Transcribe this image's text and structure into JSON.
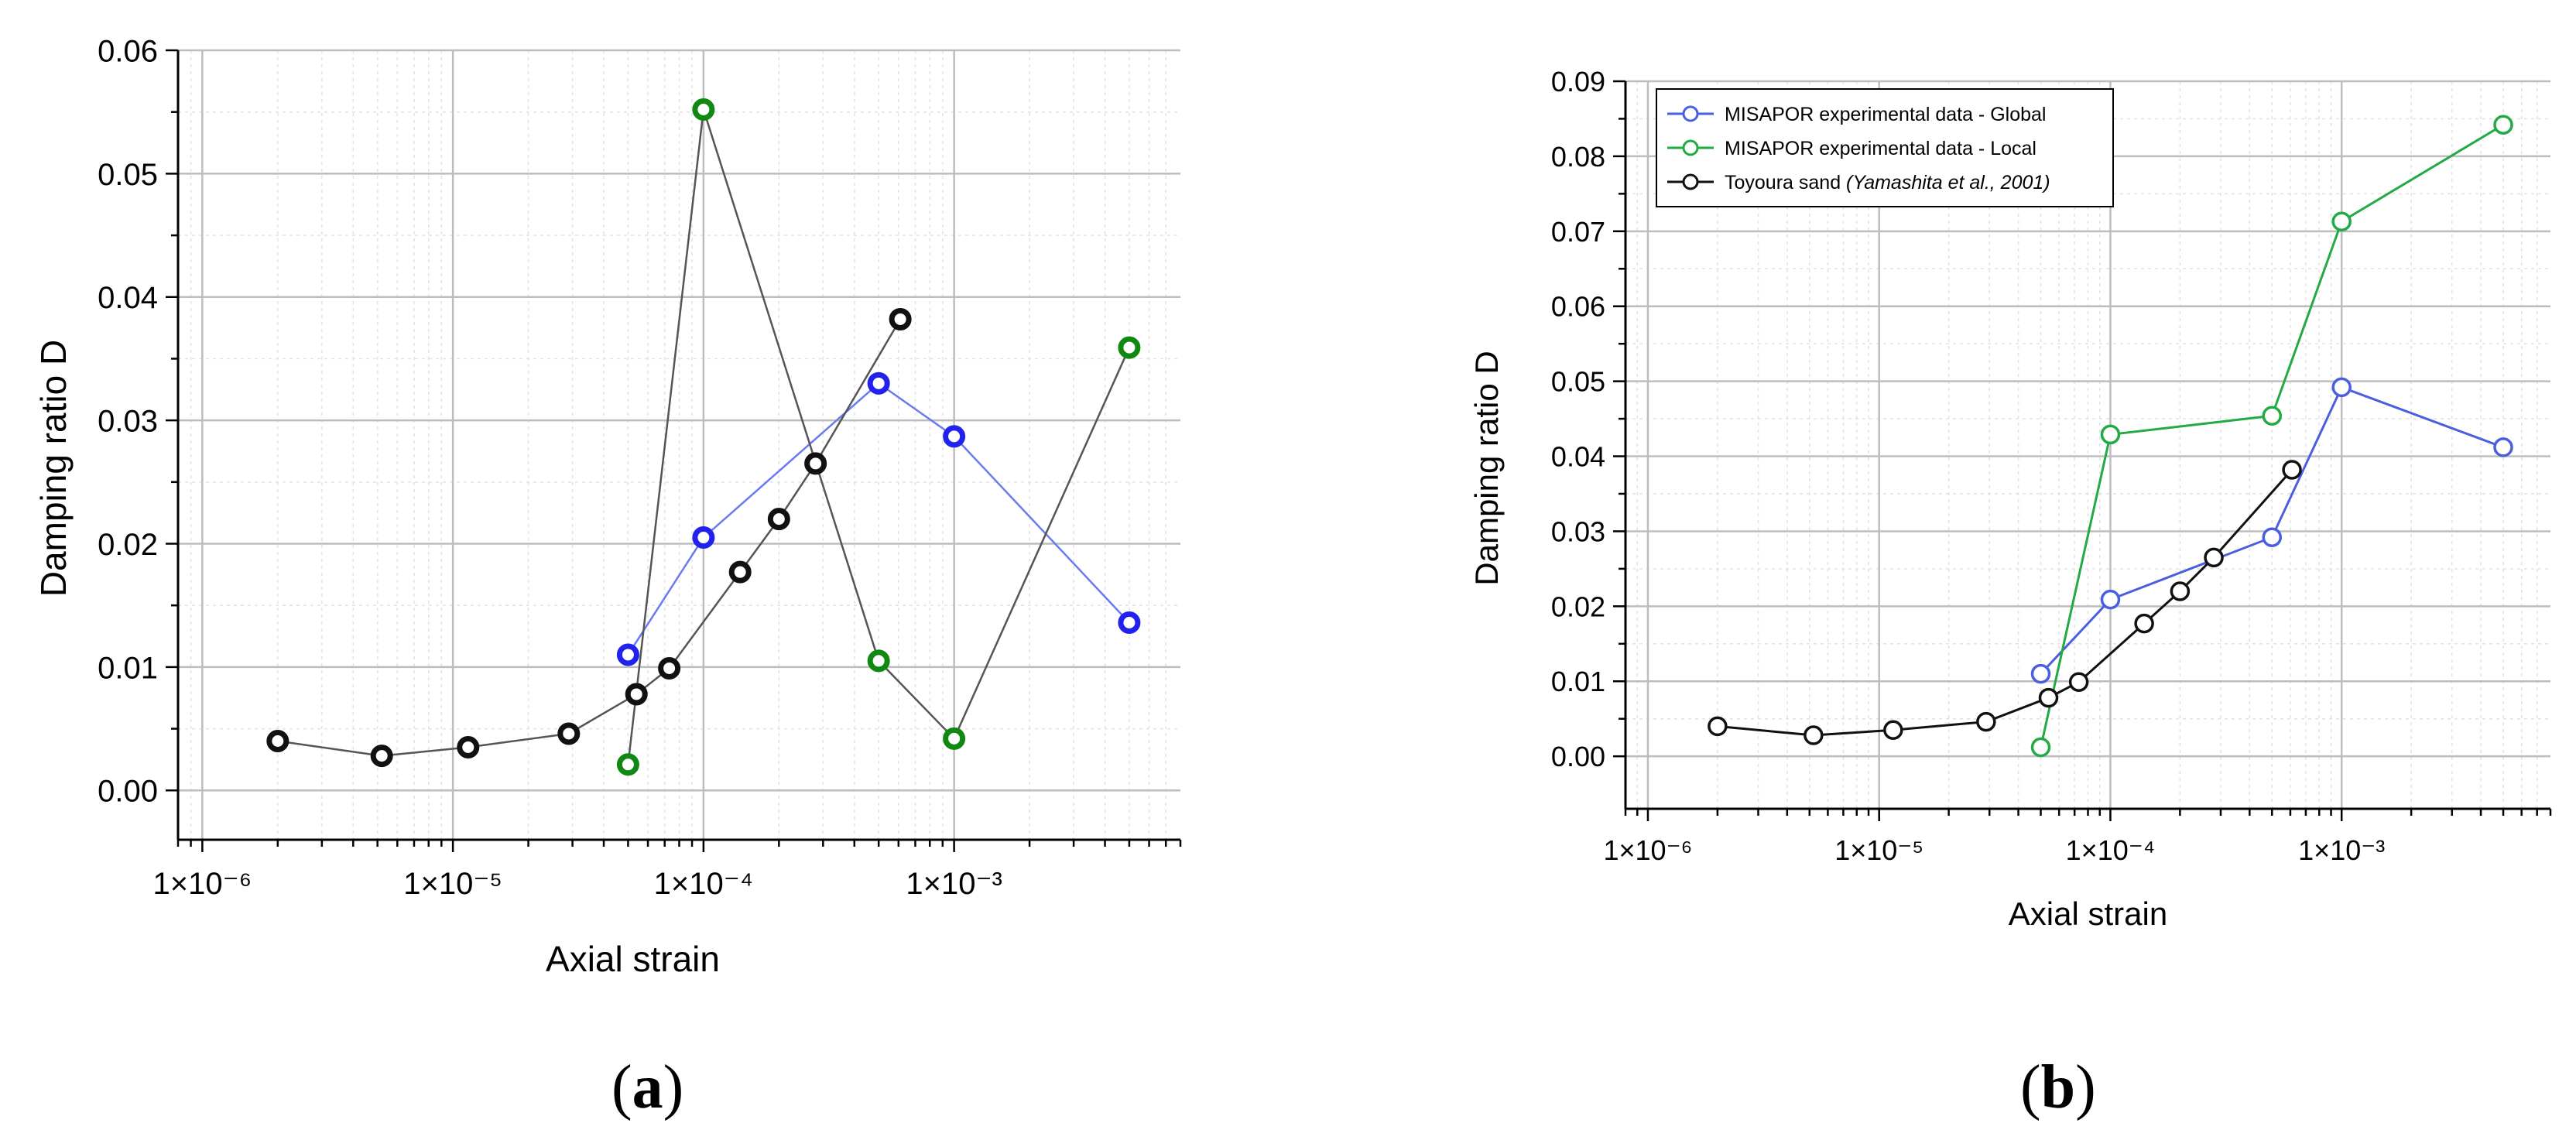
{
  "panels": [
    {
      "caption_open": "(",
      "caption_letter": "a",
      "caption_close": ")"
    },
    {
      "caption_open": "(",
      "caption_letter": "b",
      "caption_close": ")"
    }
  ],
  "colors": {
    "global": "#2222ee",
    "local": "#118811",
    "toyoura": "#111111",
    "local_line_b": "#22aa44",
    "global_line_b": "#4a5fe0"
  },
  "chart_data": [
    {
      "type": "scatter",
      "title": "",
      "xlabel": "Axial strain",
      "ylabel": "Damping ratio D",
      "xscale": "log",
      "xlim": [
        8e-07,
        0.008
      ],
      "ylim": [
        -0.004,
        0.06
      ],
      "xticks": [
        {
          "value": 1e-06,
          "label": "1×10⁻⁶"
        },
        {
          "value": 1e-05,
          "label": "1×10⁻⁵"
        },
        {
          "value": 0.0001,
          "label": "1×10⁻⁴"
        },
        {
          "value": 0.001,
          "label": "1×10⁻³"
        }
      ],
      "yticks": [
        {
          "value": 0.0,
          "label": "0.00"
        },
        {
          "value": 0.01,
          "label": "0.01"
        },
        {
          "value": 0.02,
          "label": "0.02"
        },
        {
          "value": 0.03,
          "label": "0.03"
        },
        {
          "value": 0.04,
          "label": "0.04"
        },
        {
          "value": 0.05,
          "label": "0.05"
        },
        {
          "value": 0.06,
          "label": "0.06"
        }
      ],
      "grid": true,
      "series": [
        {
          "key": "global",
          "x": [
            5e-05,
            0.0001,
            0.0005,
            0.001,
            0.005
          ],
          "y": [
            0.011,
            0.0205,
            0.033,
            0.0287,
            0.0136
          ],
          "line_color": "#6a7af0",
          "marker_color": "#2222ee"
        },
        {
          "key": "local",
          "x": [
            5e-05,
            0.0001,
            0.0005,
            0.001,
            0.005
          ],
          "y": [
            0.0021,
            0.0552,
            0.0105,
            0.0042,
            0.0359
          ],
          "line_color": "#555555",
          "marker_color": "#118811"
        },
        {
          "key": "toyoura",
          "x": [
            2e-06,
            5.2e-06,
            1.15e-05,
            2.9e-05,
            5.4e-05,
            7.3e-05,
            0.00014,
            0.0002,
            0.00028,
            0.00061
          ],
          "y": [
            0.004,
            0.0028,
            0.0035,
            0.0046,
            0.0078,
            0.0099,
            0.0177,
            0.022,
            0.0265,
            0.0382
          ],
          "line_color": "#555555",
          "marker_color": "#111111"
        }
      ]
    },
    {
      "type": "line",
      "title": "",
      "xlabel": "Axial strain",
      "ylabel": "Damping ratio D",
      "xscale": "log",
      "xlim": [
        8e-07,
        0.008
      ],
      "ylim": [
        -0.007,
        0.09
      ],
      "xticks": [
        {
          "value": 1e-06,
          "label": "1×10⁻⁶"
        },
        {
          "value": 1e-05,
          "label": "1×10⁻⁵"
        },
        {
          "value": 0.0001,
          "label": "1×10⁻⁴"
        },
        {
          "value": 0.001,
          "label": "1×10⁻³"
        }
      ],
      "yticks": [
        {
          "value": 0.0,
          "label": "0.00"
        },
        {
          "value": 0.01,
          "label": "0.01"
        },
        {
          "value": 0.02,
          "label": "0.02"
        },
        {
          "value": 0.03,
          "label": "0.03"
        },
        {
          "value": 0.04,
          "label": "0.04"
        },
        {
          "value": 0.05,
          "label": "0.05"
        },
        {
          "value": 0.06,
          "label": "0.06"
        },
        {
          "value": 0.07,
          "label": "0.07"
        },
        {
          "value": 0.08,
          "label": "0.08"
        },
        {
          "value": 0.09,
          "label": "0.09"
        }
      ],
      "grid": true,
      "legend_position": "top-left",
      "series": [
        {
          "key": "global",
          "name": "MISAPOR experimental data - Global",
          "x": [
            5e-05,
            0.0001,
            0.0005,
            0.001,
            0.005
          ],
          "y": [
            0.011,
            0.0209,
            0.0292,
            0.0492,
            0.0412
          ],
          "line_color": "#4a5fe0",
          "marker_color": "#4a5fe0"
        },
        {
          "key": "local",
          "name": "MISAPOR experimental data - Local",
          "x": [
            5e-05,
            0.0001,
            0.0005,
            0.001,
            0.005
          ],
          "y": [
            0.0012,
            0.0429,
            0.0454,
            0.0713,
            0.0842
          ],
          "line_color": "#22aa44",
          "marker_color": "#22aa44"
        },
        {
          "key": "toyoura",
          "name": "Toyoura sand",
          "name_ref": "(Yamashita et al., 2001)",
          "x": [
            2e-06,
            5.2e-06,
            1.15e-05,
            2.9e-05,
            5.4e-05,
            7.3e-05,
            0.00014,
            0.0002,
            0.00028,
            0.00061
          ],
          "y": [
            0.004,
            0.0028,
            0.0035,
            0.0046,
            0.0078,
            0.0099,
            0.0177,
            0.022,
            0.0265,
            0.0382
          ],
          "line_color": "#111111",
          "marker_color": "#111111"
        }
      ]
    }
  ]
}
